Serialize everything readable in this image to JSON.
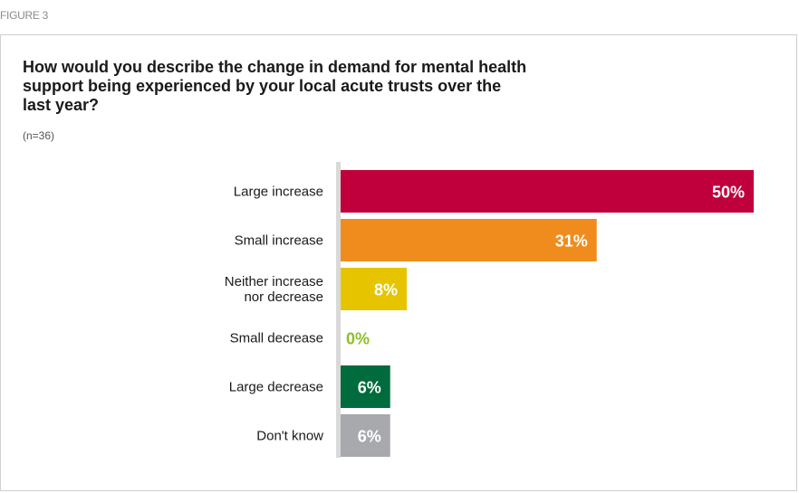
{
  "figure_label": "FIGURE 3",
  "chart_data": {
    "type": "bar",
    "orientation": "horizontal",
    "title": "How would you describe the change in demand for mental health support being experienced by your local acute trusts over the last year?",
    "subtitle": "(n=36)",
    "categories": [
      [
        "Large increase"
      ],
      [
        "Small increase"
      ],
      [
        "Neither increase",
        "nor decrease"
      ],
      [
        "Small decrease"
      ],
      [
        "Large decrease"
      ],
      [
        "Don't know"
      ]
    ],
    "values": [
      50,
      31,
      8,
      0,
      6,
      6
    ],
    "value_labels": [
      "50%",
      "31%",
      "8%",
      "0%",
      "6%",
      "6%"
    ],
    "colors": [
      "#c0003c",
      "#f08c1e",
      "#e6c400",
      "#8cbf26",
      "#006b3c",
      "#a7a9ac"
    ],
    "xlim": [
      0,
      50
    ],
    "grid": false,
    "legend": "none"
  }
}
